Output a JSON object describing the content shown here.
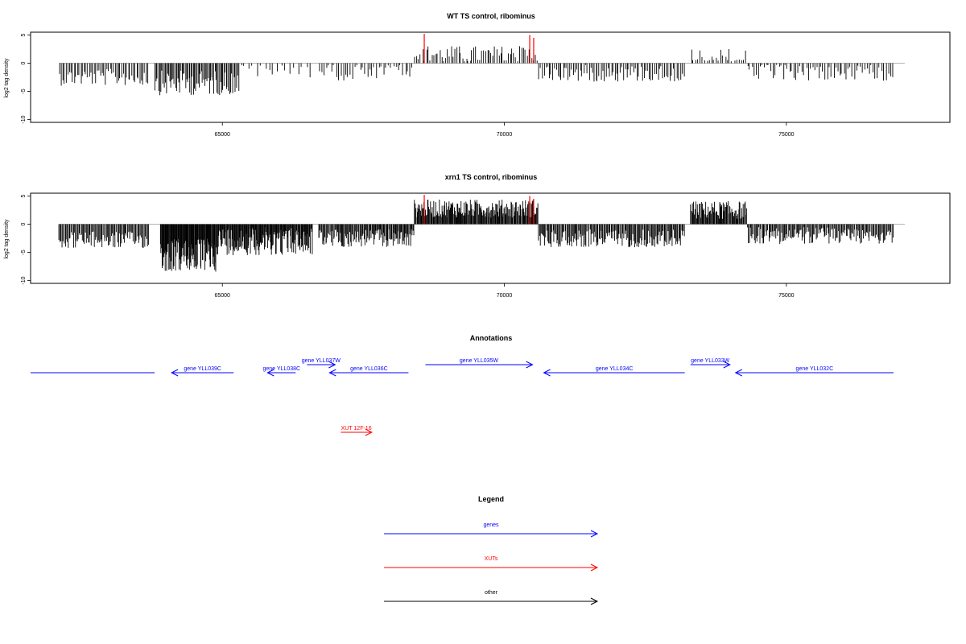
{
  "colors": {
    "gene": "#0000ff",
    "xut": "#ff0000",
    "other": "#000000",
    "bar": "#000000",
    "highlight": "#ff0000",
    "baseline": "#999999"
  },
  "chart_data": [
    {
      "type": "bar",
      "title": "WT TS control, ribominus",
      "ylabel": "log2 tag density",
      "xlim": [
        61600,
        77900
      ],
      "ylim": [
        -10.5,
        5.5
      ],
      "xticks": [
        65000,
        70000,
        75000
      ],
      "yticks": [
        5,
        0,
        -5,
        -10
      ],
      "ytick_labels": [
        "5",
        "0",
        "-5",
        "-10"
      ],
      "segments": [
        {
          "x0": 62100,
          "x1": 63700,
          "sign": -1,
          "base": 2.5,
          "var": 1.5,
          "n": 55
        },
        {
          "x0": 63800,
          "x1": 65300,
          "sign": -1,
          "base": 3.5,
          "var": 2.2,
          "n": 75
        },
        {
          "x0": 65300,
          "x1": 66600,
          "sign": -1,
          "base": 1.0,
          "var": 1.6,
          "n": 18
        },
        {
          "x0": 66700,
          "x1": 68400,
          "sign": -1,
          "base": 1.5,
          "var": 1.6,
          "n": 40
        },
        {
          "x0": 68400,
          "x1": 70600,
          "sign": 1,
          "base": 1.5,
          "var": 1.6,
          "n": 65
        },
        {
          "x0": 70600,
          "x1": 73200,
          "sign": -1,
          "base": 1.8,
          "var": 1.5,
          "n": 85
        },
        {
          "x0": 73300,
          "x1": 74300,
          "sign": 1,
          "base": 1.0,
          "var": 1.8,
          "n": 25
        },
        {
          "x0": 74300,
          "x1": 76900,
          "sign": -1,
          "base": 1.6,
          "var": 1.5,
          "n": 70
        }
      ],
      "highlights": [
        {
          "x": 68580,
          "y": 5.2
        },
        {
          "x": 70450,
          "y": 5.0
        },
        {
          "x": 70520,
          "y": 4.5
        }
      ]
    },
    {
      "type": "bar",
      "title": "xrn1 TS control, ribominus",
      "ylabel": "log2 tag density",
      "xlim": [
        61600,
        77900
      ],
      "ylim": [
        -10.5,
        5.5
      ],
      "xticks": [
        65000,
        70000,
        75000
      ],
      "yticks": [
        5,
        0,
        -5,
        -10
      ],
      "ytick_labels": [
        "5",
        "0",
        "-5",
        "-10"
      ],
      "segments": [
        {
          "x0": 62100,
          "x1": 63700,
          "sign": -1,
          "base": 2.8,
          "var": 1.5,
          "n": 90
        },
        {
          "x0": 63900,
          "x1": 64900,
          "sign": -1,
          "base": 5.5,
          "var": 3.0,
          "n": 110
        },
        {
          "x0": 64900,
          "x1": 66600,
          "sign": -1,
          "base": 3.0,
          "var": 2.5,
          "n": 160
        },
        {
          "x0": 66700,
          "x1": 68400,
          "sign": -1,
          "base": 2.5,
          "var": 1.6,
          "n": 120
        },
        {
          "x0": 68400,
          "x1": 70600,
          "sign": 1,
          "base": 2.8,
          "var": 1.6,
          "n": 180
        },
        {
          "x0": 70600,
          "x1": 73200,
          "sign": -1,
          "base": 2.5,
          "var": 1.6,
          "n": 160
        },
        {
          "x0": 73300,
          "x1": 74300,
          "sign": 1,
          "base": 2.5,
          "var": 1.6,
          "n": 80
        },
        {
          "x0": 74300,
          "x1": 76900,
          "sign": -1,
          "base": 2.0,
          "var": 1.5,
          "n": 150
        }
      ],
      "highlights": [
        {
          "x": 68580,
          "y": 5.2
        },
        {
          "x": 70450,
          "y": 5.0
        },
        {
          "x": 70520,
          "y": 4.5
        }
      ]
    }
  ],
  "annotations": {
    "title": "Annotations",
    "genes": [
      {
        "label": "",
        "x0": 61600,
        "x1": 63800,
        "dir": "none",
        "row": 0
      },
      {
        "label": "gene YLL039C",
        "x0": 64100,
        "x1": 65200,
        "dir": "left",
        "row": 0
      },
      {
        "label": "gene YLL037W",
        "x0": 66500,
        "x1": 67000,
        "dir": "right",
        "row": 1
      },
      {
        "label": "gene YLL038C",
        "x0": 65800,
        "x1": 66300,
        "dir": "left",
        "row": 0
      },
      {
        "label": "gene YLL036C",
        "x0": 66900,
        "x1": 68300,
        "dir": "left",
        "row": 0
      },
      {
        "label": "gene YLL035W",
        "x0": 68600,
        "x1": 70500,
        "dir": "right",
        "row": 1
      },
      {
        "label": "gene YLL034C",
        "x0": 70700,
        "x1": 73200,
        "dir": "left",
        "row": 0
      },
      {
        "label": "gene YLL033W",
        "x0": 73300,
        "x1": 74000,
        "dir": "right",
        "row": 1
      },
      {
        "label": "gene YLL032C",
        "x0": 74100,
        "x1": 76900,
        "dir": "left",
        "row": 0
      }
    ],
    "xuts": [
      {
        "label": "XUT 12F-16",
        "x0": 67100,
        "x1": 67650,
        "dir": "right"
      }
    ]
  },
  "legend": {
    "title": "Legend",
    "items": [
      {
        "label": "genes",
        "kind": "gene"
      },
      {
        "label": "XUTs",
        "kind": "xut"
      },
      {
        "label": "other",
        "kind": "other"
      }
    ]
  }
}
